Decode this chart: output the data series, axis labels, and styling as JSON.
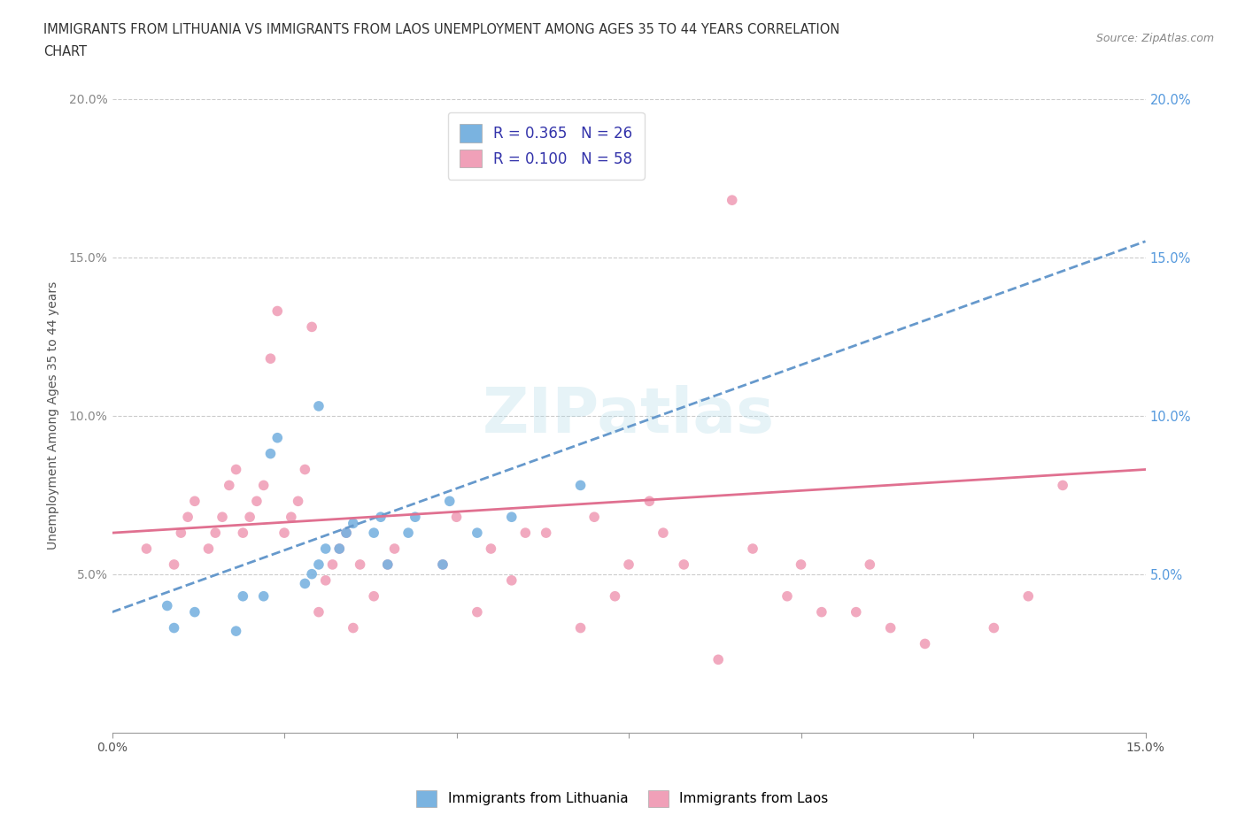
{
  "title_line1": "IMMIGRANTS FROM LITHUANIA VS IMMIGRANTS FROM LAOS UNEMPLOYMENT AMONG AGES 35 TO 44 YEARS CORRELATION",
  "title_line2": "CHART",
  "source_text": "Source: ZipAtlas.com",
  "ylabel": "Unemployment Among Ages 35 to 44 years",
  "xmin": 0.0,
  "xmax": 0.15,
  "ymin": 0.0,
  "ymax": 0.2,
  "xtick_values": [
    0.0,
    0.025,
    0.05,
    0.075,
    0.1,
    0.125,
    0.15
  ],
  "ytick_values": [
    0.05,
    0.1,
    0.15,
    0.2
  ],
  "legend_entries": [
    {
      "label": "R = 0.365   N = 26",
      "color": "#a8c8f0"
    },
    {
      "label": "R = 0.100   N = 58",
      "color": "#f5a8c0"
    }
  ],
  "watermark": "ZIPatlas",
  "lithuania_color": "#7ab3e0",
  "laos_color": "#f0a0b8",
  "lithuania_trend_color": "#6699cc",
  "laos_trend_color": "#e07090",
  "right_axis_color": "#5599dd",
  "lithuania_scatter": [
    [
      0.008,
      0.04
    ],
    [
      0.009,
      0.033
    ],
    [
      0.012,
      0.038
    ],
    [
      0.018,
      0.032
    ],
    [
      0.019,
      0.043
    ],
    [
      0.022,
      0.043
    ],
    [
      0.023,
      0.088
    ],
    [
      0.024,
      0.093
    ],
    [
      0.028,
      0.047
    ],
    [
      0.029,
      0.05
    ],
    [
      0.03,
      0.053
    ],
    [
      0.031,
      0.058
    ],
    [
      0.03,
      0.103
    ],
    [
      0.033,
      0.058
    ],
    [
      0.034,
      0.063
    ],
    [
      0.035,
      0.066
    ],
    [
      0.038,
      0.063
    ],
    [
      0.039,
      0.068
    ],
    [
      0.04,
      0.053
    ],
    [
      0.043,
      0.063
    ],
    [
      0.044,
      0.068
    ],
    [
      0.048,
      0.053
    ],
    [
      0.049,
      0.073
    ],
    [
      0.053,
      0.063
    ],
    [
      0.058,
      0.068
    ],
    [
      0.068,
      0.078
    ]
  ],
  "laos_scatter": [
    [
      0.005,
      0.058
    ],
    [
      0.009,
      0.053
    ],
    [
      0.01,
      0.063
    ],
    [
      0.011,
      0.068
    ],
    [
      0.012,
      0.073
    ],
    [
      0.014,
      0.058
    ],
    [
      0.015,
      0.063
    ],
    [
      0.016,
      0.068
    ],
    [
      0.017,
      0.078
    ],
    [
      0.018,
      0.083
    ],
    [
      0.019,
      0.063
    ],
    [
      0.02,
      0.068
    ],
    [
      0.021,
      0.073
    ],
    [
      0.022,
      0.078
    ],
    [
      0.023,
      0.118
    ],
    [
      0.024,
      0.133
    ],
    [
      0.025,
      0.063
    ],
    [
      0.026,
      0.068
    ],
    [
      0.027,
      0.073
    ],
    [
      0.028,
      0.083
    ],
    [
      0.029,
      0.128
    ],
    [
      0.03,
      0.038
    ],
    [
      0.031,
      0.048
    ],
    [
      0.032,
      0.053
    ],
    [
      0.033,
      0.058
    ],
    [
      0.034,
      0.063
    ],
    [
      0.035,
      0.033
    ],
    [
      0.036,
      0.053
    ],
    [
      0.038,
      0.043
    ],
    [
      0.04,
      0.053
    ],
    [
      0.041,
      0.058
    ],
    [
      0.048,
      0.053
    ],
    [
      0.05,
      0.068
    ],
    [
      0.053,
      0.038
    ],
    [
      0.055,
      0.058
    ],
    [
      0.058,
      0.048
    ],
    [
      0.06,
      0.063
    ],
    [
      0.063,
      0.063
    ],
    [
      0.068,
      0.033
    ],
    [
      0.07,
      0.068
    ],
    [
      0.073,
      0.043
    ],
    [
      0.075,
      0.053
    ],
    [
      0.078,
      0.073
    ],
    [
      0.08,
      0.063
    ],
    [
      0.083,
      0.053
    ],
    [
      0.088,
      0.023
    ],
    [
      0.09,
      0.168
    ],
    [
      0.093,
      0.058
    ],
    [
      0.098,
      0.043
    ],
    [
      0.1,
      0.053
    ],
    [
      0.103,
      0.038
    ],
    [
      0.108,
      0.038
    ],
    [
      0.11,
      0.053
    ],
    [
      0.113,
      0.033
    ],
    [
      0.118,
      0.028
    ],
    [
      0.128,
      0.033
    ],
    [
      0.133,
      0.043
    ],
    [
      0.138,
      0.078
    ]
  ],
  "lithuania_trend_x": [
    0.0,
    0.15
  ],
  "lithuania_trend_y": [
    0.038,
    0.155
  ],
  "laos_trend_x": [
    0.0,
    0.15
  ],
  "laos_trend_y": [
    0.063,
    0.083
  ],
  "background_color": "#ffffff",
  "plot_bg_color": "#ffffff",
  "grid_color": "#cccccc"
}
